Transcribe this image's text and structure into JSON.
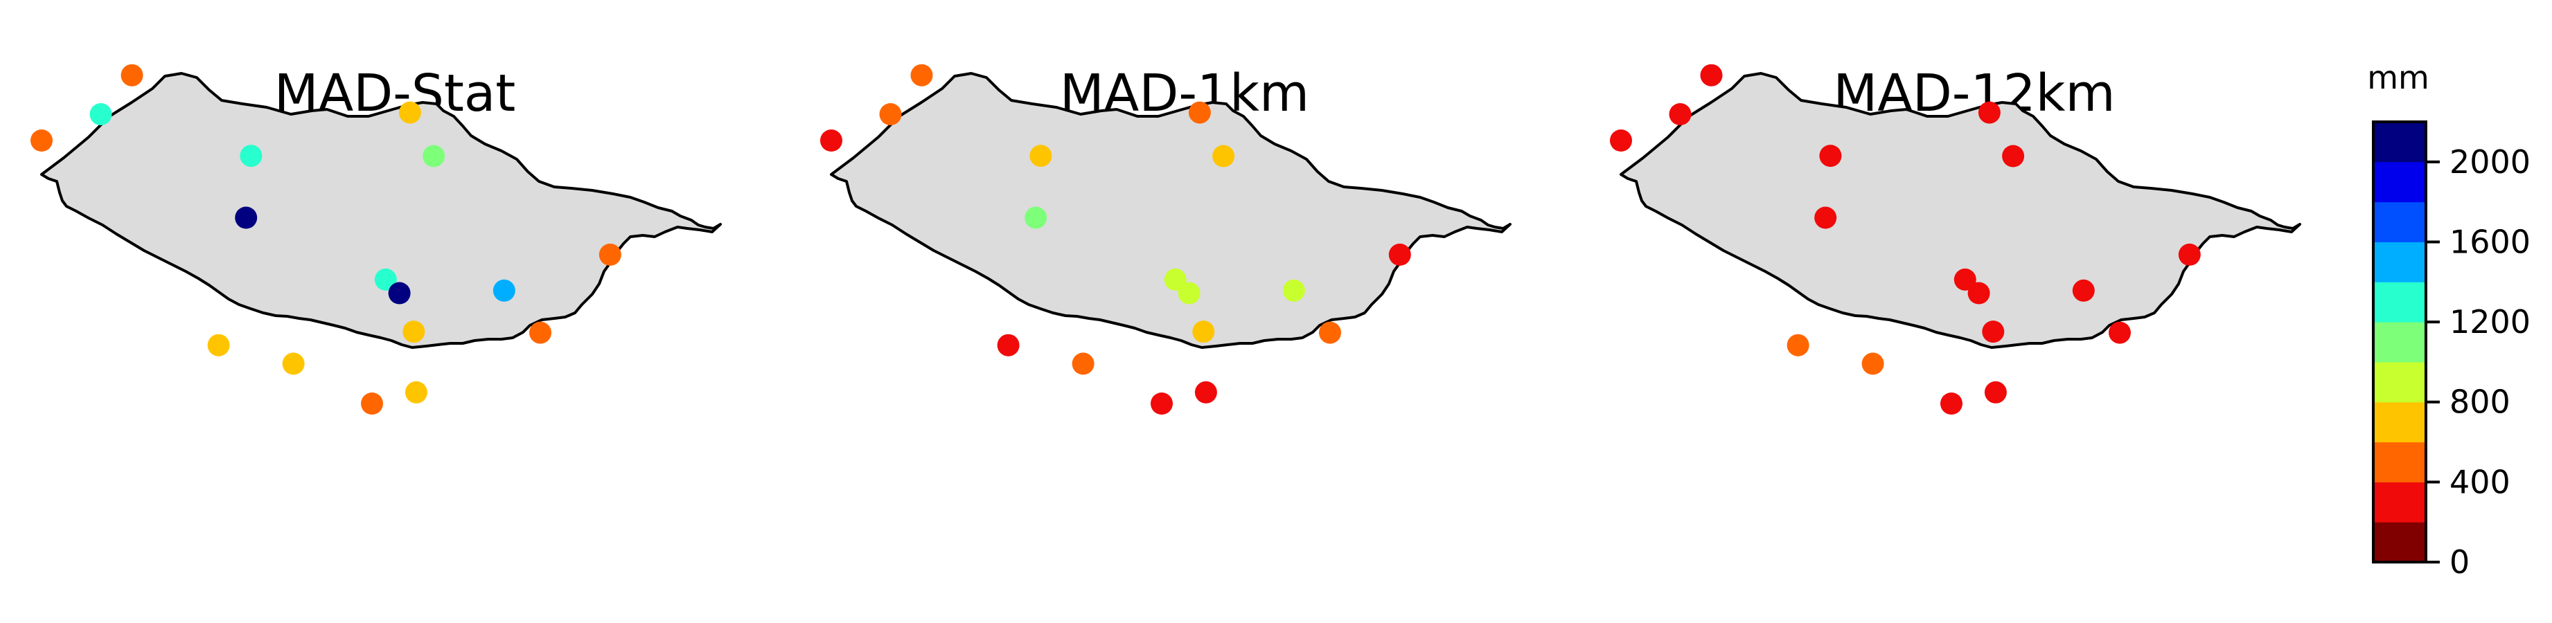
{
  "chart_data": {
    "type": "scatter",
    "description_units": "normalized island map coordinates (0-1) and precipitation values in mm",
    "panels": [
      {
        "title": "MAD-Stat",
        "stations": [
          {
            "lon": 0.145,
            "lat": 0.985,
            "value": 450
          },
          {
            "lon": 0.0,
            "lat": 0.6,
            "value": 450
          },
          {
            "lon": 0.095,
            "lat": 0.755,
            "value": 1300
          },
          {
            "lon": 0.336,
            "lat": 0.51,
            "value": 1300
          },
          {
            "lon": 0.591,
            "lat": 0.765,
            "value": 700
          },
          {
            "lon": 0.629,
            "lat": 0.508,
            "value": 1100
          },
          {
            "lon": 0.328,
            "lat": 0.145,
            "value": 2100
          },
          {
            "lon": 0.552,
            "lat": -0.22,
            "value": 1300
          },
          {
            "lon": 0.574,
            "lat": -0.3,
            "value": 2100
          },
          {
            "lon": 0.742,
            "lat": -0.285,
            "value": 1500
          },
          {
            "lon": 0.912,
            "lat": -0.073,
            "value": 500
          },
          {
            "lon": 0.597,
            "lat": -0.527,
            "value": 650
          },
          {
            "lon": 0.8,
            "lat": -0.533,
            "value": 450
          },
          {
            "lon": 0.284,
            "lat": -0.607,
            "value": 700
          },
          {
            "lon": 0.404,
            "lat": -0.716,
            "value": 700
          },
          {
            "lon": 0.53,
            "lat": -0.951,
            "value": 450
          },
          {
            "lon": 0.601,
            "lat": -0.885,
            "value": 700
          }
        ]
      },
      {
        "title": "MAD-1km",
        "stations": [
          {
            "lon": 0.145,
            "lat": 0.985,
            "value": 500
          },
          {
            "lon": 0.0,
            "lat": 0.6,
            "value": 300
          },
          {
            "lon": 0.095,
            "lat": 0.755,
            "value": 450
          },
          {
            "lon": 0.336,
            "lat": 0.51,
            "value": 700
          },
          {
            "lon": 0.591,
            "lat": 0.765,
            "value": 450
          },
          {
            "lon": 0.629,
            "lat": 0.508,
            "value": 700
          },
          {
            "lon": 0.328,
            "lat": 0.145,
            "value": 1100
          },
          {
            "lon": 0.552,
            "lat": -0.22,
            "value": 900
          },
          {
            "lon": 0.574,
            "lat": -0.3,
            "value": 900
          },
          {
            "lon": 0.742,
            "lat": -0.285,
            "value": 900
          },
          {
            "lon": 0.912,
            "lat": -0.073,
            "value": 300
          },
          {
            "lon": 0.597,
            "lat": -0.527,
            "value": 700
          },
          {
            "lon": 0.8,
            "lat": -0.533,
            "value": 450
          },
          {
            "lon": 0.284,
            "lat": -0.607,
            "value": 300
          },
          {
            "lon": 0.404,
            "lat": -0.716,
            "value": 450
          },
          {
            "lon": 0.53,
            "lat": -0.951,
            "value": 300
          },
          {
            "lon": 0.601,
            "lat": -0.885,
            "value": 300
          }
        ]
      },
      {
        "title": "MAD-12km",
        "stations": [
          {
            "lon": 0.145,
            "lat": 0.985,
            "value": 300
          },
          {
            "lon": 0.0,
            "lat": 0.6,
            "value": 300
          },
          {
            "lon": 0.095,
            "lat": 0.755,
            "value": 300
          },
          {
            "lon": 0.336,
            "lat": 0.51,
            "value": 300
          },
          {
            "lon": 0.591,
            "lat": 0.765,
            "value": 300
          },
          {
            "lon": 0.629,
            "lat": 0.508,
            "value": 300
          },
          {
            "lon": 0.328,
            "lat": 0.145,
            "value": 300
          },
          {
            "lon": 0.552,
            "lat": -0.22,
            "value": 300
          },
          {
            "lon": 0.574,
            "lat": -0.3,
            "value": 300
          },
          {
            "lon": 0.742,
            "lat": -0.285,
            "value": 300
          },
          {
            "lon": 0.912,
            "lat": -0.073,
            "value": 300
          },
          {
            "lon": 0.597,
            "lat": -0.527,
            "value": 300
          },
          {
            "lon": 0.8,
            "lat": -0.533,
            "value": 300
          },
          {
            "lon": 0.284,
            "lat": -0.607,
            "value": 450
          },
          {
            "lon": 0.404,
            "lat": -0.716,
            "value": 450
          },
          {
            "lon": 0.53,
            "lat": -0.951,
            "value": 300
          },
          {
            "lon": 0.601,
            "lat": -0.885,
            "value": 300
          }
        ]
      }
    ],
    "colorbar": {
      "unit_label": "mm",
      "range": [
        0,
        2200
      ],
      "step": 200,
      "tick_values": [
        0,
        400,
        800,
        1200,
        1600,
        2000
      ],
      "tick_labels": [
        "0",
        "400",
        "800",
        "1200",
        "1600",
        "2000"
      ],
      "colors": [
        "#800000",
        "#f00a0a",
        "#ff6600",
        "#ffc400",
        "#c8ff2e",
        "#7dff7a",
        "#28ffce",
        "#00aeff",
        "#0050ff",
        "#0000ed",
        "#000080"
      ]
    },
    "island_fill": "#dcdcdc",
    "outline_color": "#000000"
  }
}
